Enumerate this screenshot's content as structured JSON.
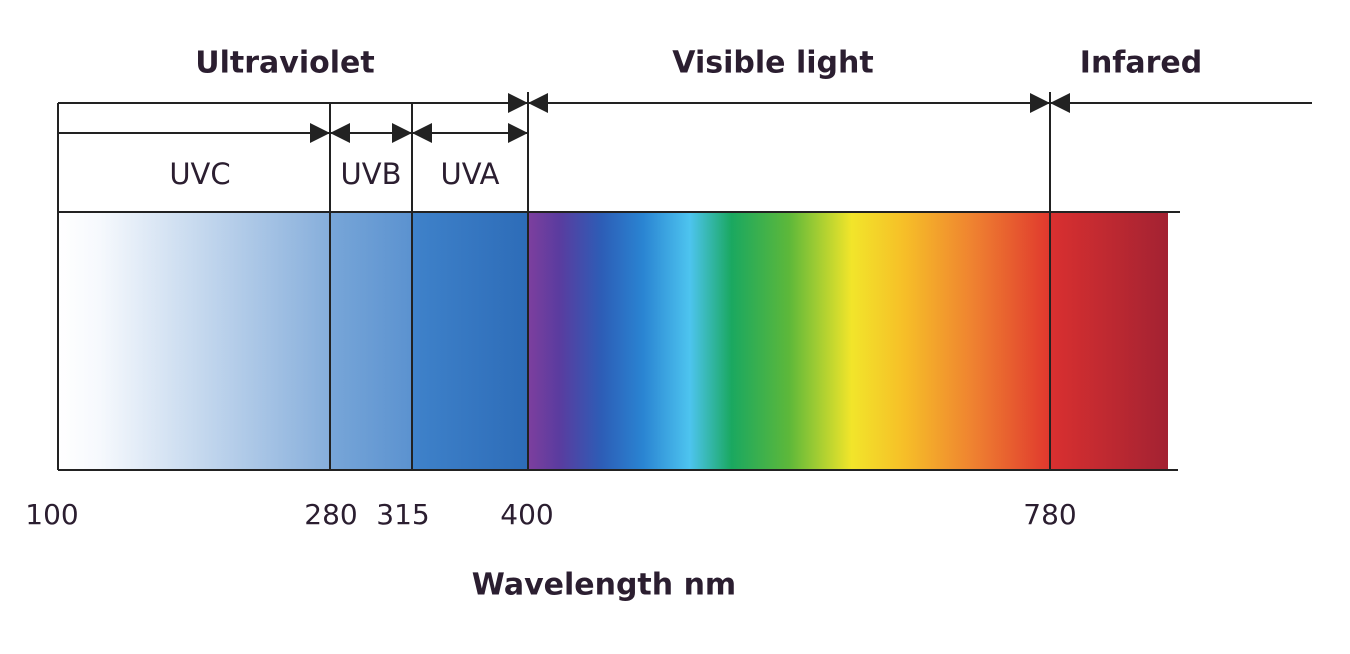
{
  "groups": [
    {
      "label": "Ultraviolet"
    },
    {
      "label": "Visible light"
    },
    {
      "label": "Infared"
    }
  ],
  "bands": [
    {
      "label": "UVC"
    },
    {
      "label": "UVB"
    },
    {
      "label": "UVA"
    }
  ],
  "ticks": [
    "100",
    "280",
    "315",
    "400",
    "780"
  ],
  "axis_label": "Wavelength nm"
}
